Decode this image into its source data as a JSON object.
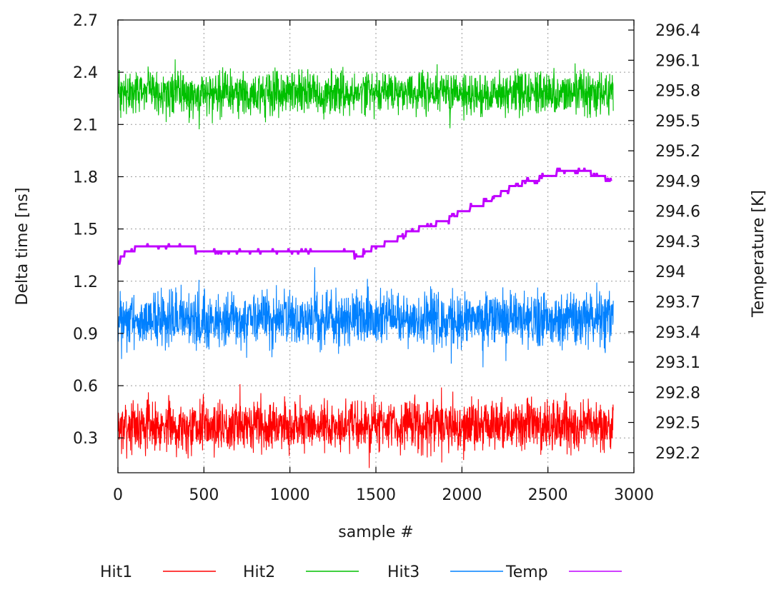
{
  "chart_data": {
    "type": "line",
    "title": "",
    "xlabel": "sample #",
    "ylabel": "Delta time [ns]",
    "y2label": "Temperature [K]",
    "xlim": [
      0,
      3000
    ],
    "ylim": [
      0.1,
      2.7
    ],
    "y2lim": [
      292.0,
      296.5
    ],
    "x_ticks": [
      "0",
      "500",
      "1000",
      "1500",
      "2000",
      "2500",
      "3000"
    ],
    "y_ticks": [
      "0.3",
      "0.6",
      "0.9",
      "1.2",
      "1.5",
      "1.8",
      "2.1",
      "2.4",
      "2.7"
    ],
    "y2_ticks": [
      "292.2",
      "292.5",
      "292.8",
      "293.1",
      "293.4",
      "293.7",
      "294",
      "294.3",
      "294.6",
      "294.9",
      "295.2",
      "295.5",
      "295.8",
      "296.1",
      "296.4"
    ],
    "grid": true,
    "legend_position": "bottom",
    "series": [
      {
        "name": "Hit1",
        "axis": "left",
        "color": "#ff0000",
        "x_range": [
          0,
          2880
        ],
        "mean": 0.37,
        "range": [
          0.1,
          0.67
        ]
      },
      {
        "name": "Hit2",
        "axis": "left",
        "color": "#00c000",
        "x_range": [
          0,
          2880
        ],
        "mean": 2.28,
        "range": [
          2.05,
          2.54
        ]
      },
      {
        "name": "Hit3",
        "axis": "left",
        "color": "#0080ff",
        "x_range": [
          0,
          2880
        ],
        "mean": 0.98,
        "range": [
          0.67,
          1.28
        ]
      },
      {
        "name": "Temp",
        "axis": "right",
        "color": "#c000ff",
        "x": [
          0,
          50,
          150,
          400,
          500,
          800,
          1100,
          1350,
          1400,
          1500,
          1600,
          1700,
          1800,
          1900,
          2000,
          2100,
          2200,
          2300,
          2400,
          2500,
          2600,
          2700,
          2800,
          2870
        ],
        "values": [
          294.1,
          294.2,
          294.25,
          294.25,
          294.2,
          294.2,
          294.2,
          294.2,
          294.15,
          294.25,
          294.3,
          294.4,
          294.45,
          294.5,
          294.6,
          294.65,
          294.75,
          294.85,
          294.9,
          294.95,
          295.0,
          295.0,
          294.95,
          294.9
        ]
      }
    ]
  }
}
